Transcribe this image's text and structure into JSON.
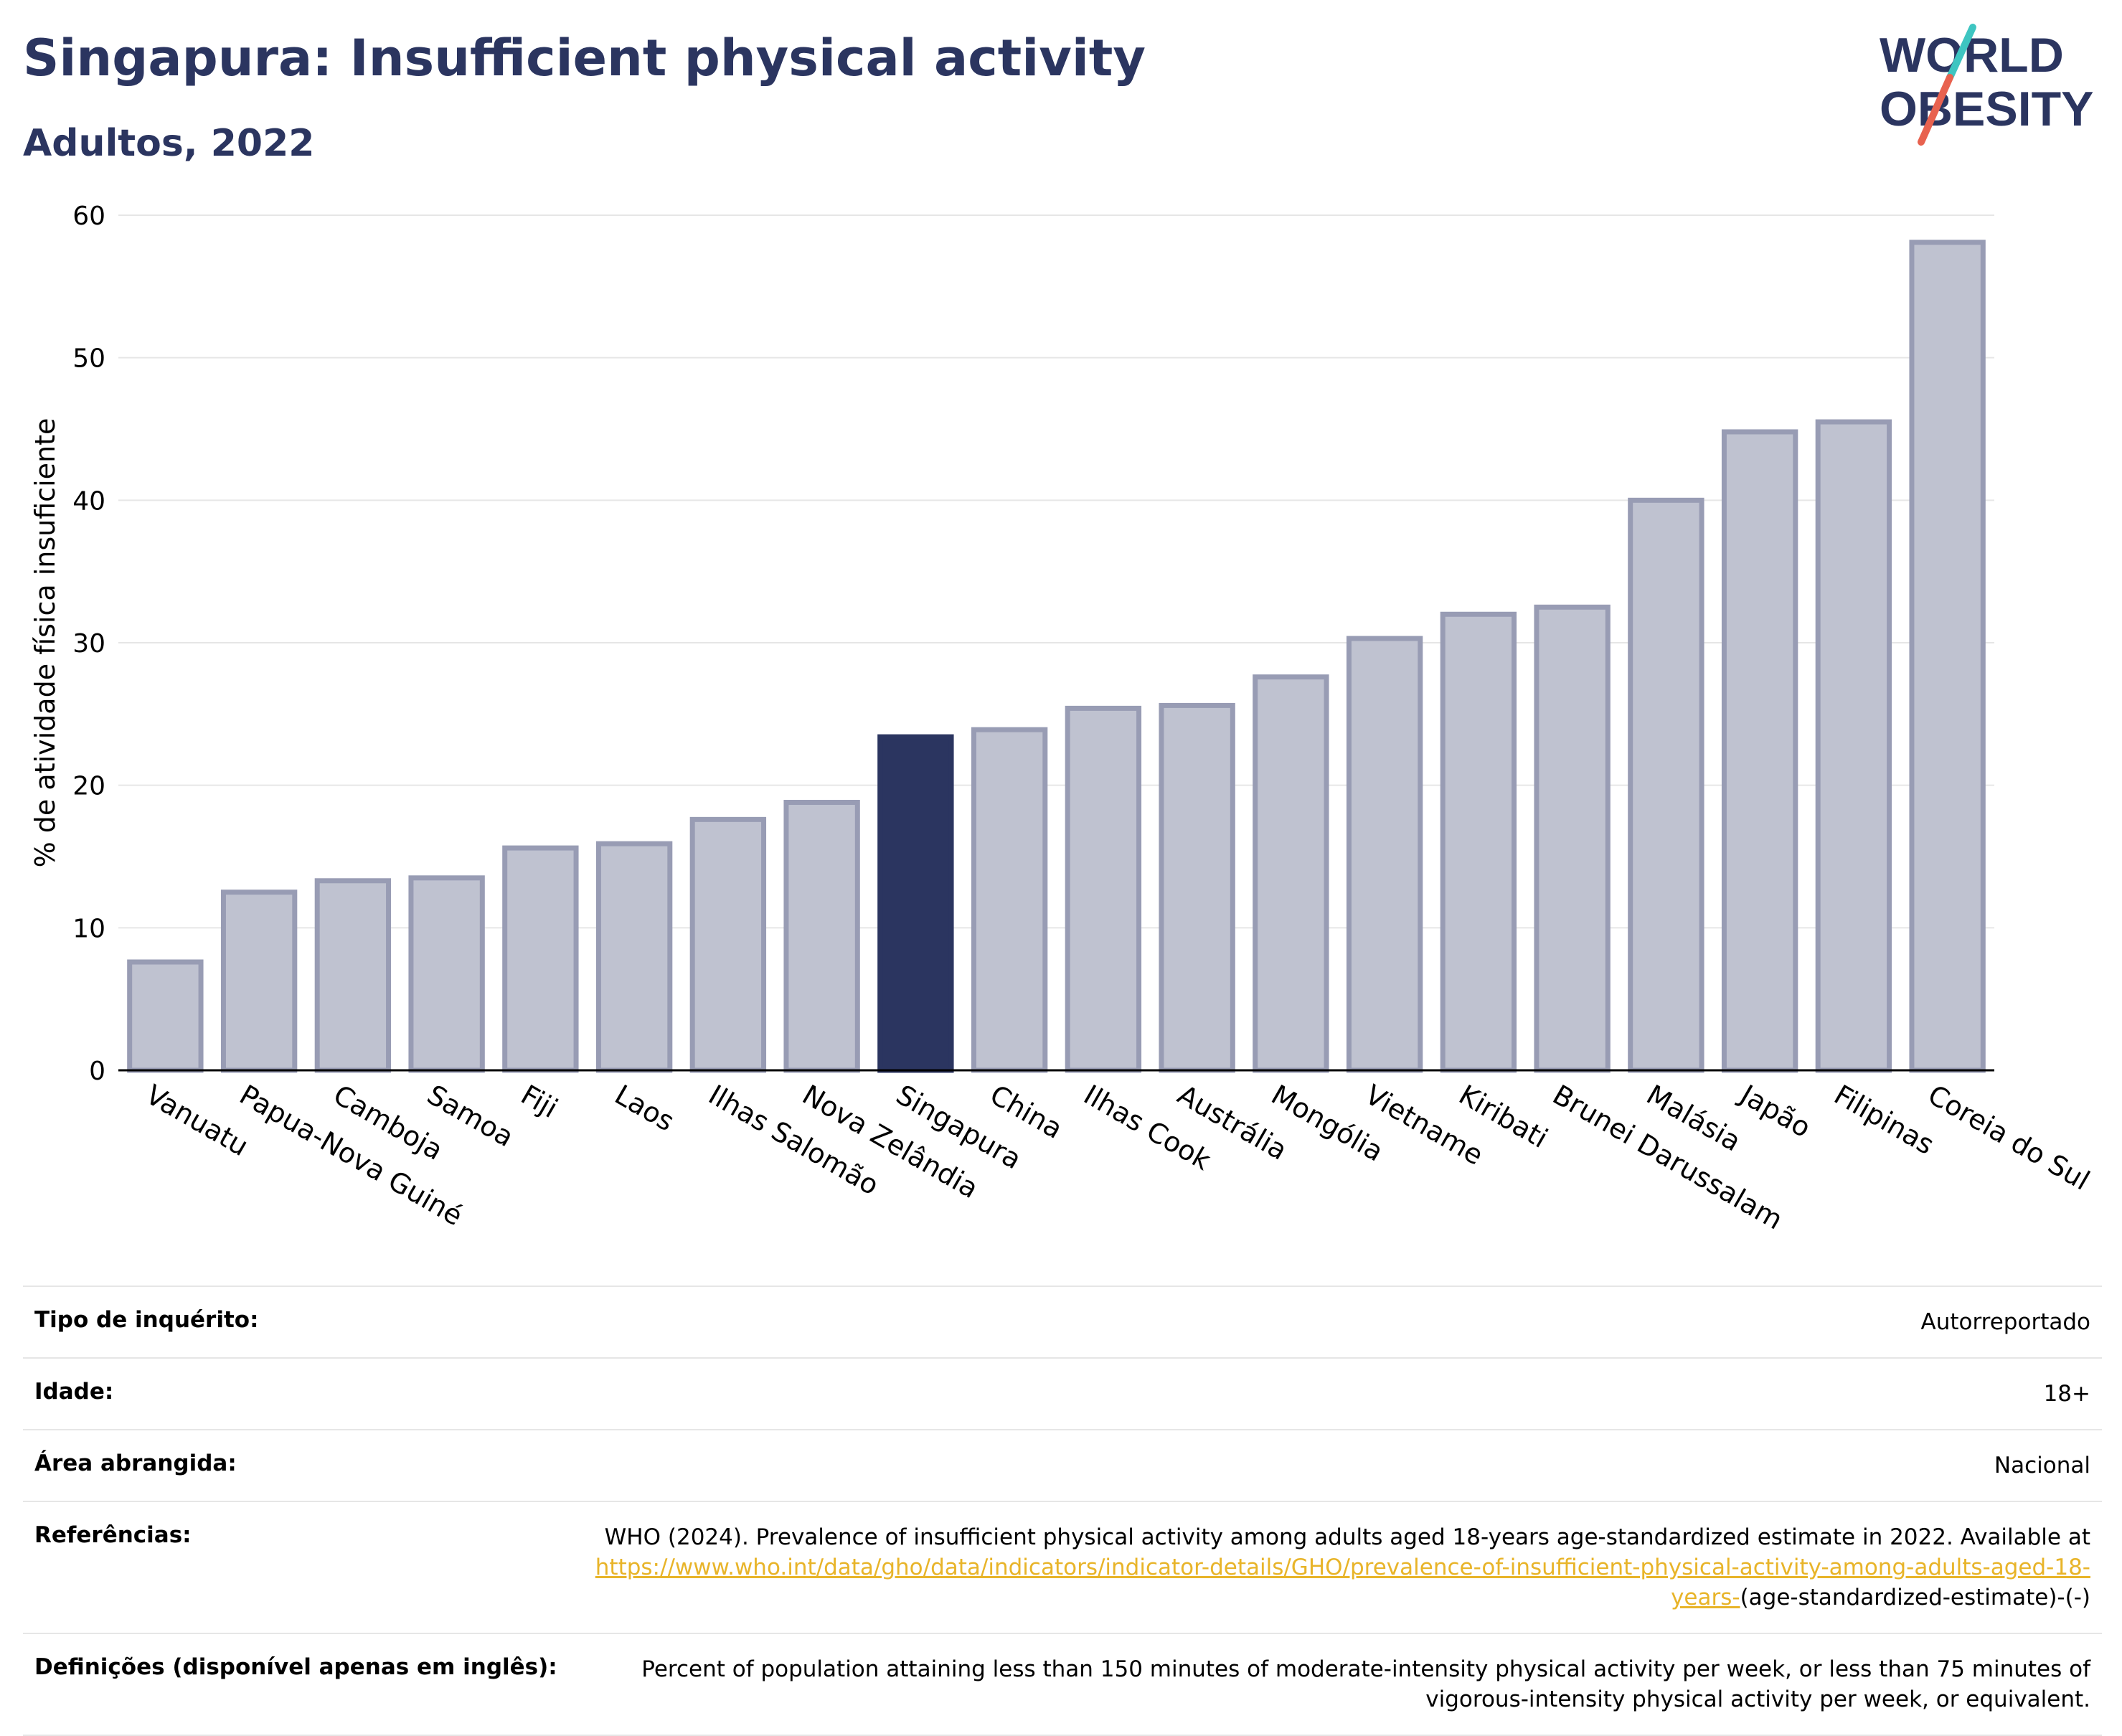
{
  "header": {
    "title": "Singapura: Insufficient physical activity",
    "subtitle": "Adultos, 2022"
  },
  "logo": {
    "line1": "WORLD",
    "line2": "OBESITY",
    "slash_colors": [
      "#3ec5c1",
      "#e8624f"
    ]
  },
  "colors": {
    "bar": "#bfc2d0",
    "bar_stroke": "#989cb4",
    "highlight": "#2b3560",
    "grid": "#e6e6e6",
    "text": "#2b3560",
    "link": "#e8b429"
  },
  "chart_data": {
    "type": "bar",
    "ylabel": "% de atividade física insuficiente",
    "ylim": [
      0,
      60
    ],
    "yticks": [
      0,
      10,
      20,
      30,
      40,
      50,
      60
    ],
    "highlight": "Singapura",
    "categories": [
      "Vanuatu",
      "Papua-Nova Guiné",
      "Camboja",
      "Samoa",
      "Fiji",
      "Laos",
      "Ilhas Salomão",
      "Nova Zelândia",
      "Singapura",
      "China",
      "Ilhas Cook",
      "Austrália",
      "Mongólia",
      "Vietname",
      "Kiribati",
      "Brunei Darussalam",
      "Malásia",
      "Japão",
      "Filipinas",
      "Coreia do Sul"
    ],
    "values": [
      7.6,
      12.5,
      13.3,
      13.5,
      15.6,
      15.9,
      17.6,
      18.8,
      23.4,
      23.9,
      25.4,
      25.6,
      27.6,
      30.3,
      32.0,
      32.5,
      40.0,
      44.8,
      45.5,
      58.1
    ]
  },
  "info": {
    "rows": [
      {
        "label": "Tipo de inquérito:",
        "value": "Autorreportado"
      },
      {
        "label": "Idade:",
        "value": "18+"
      },
      {
        "label": "Área abrangida:",
        "value": "Nacional"
      }
    ],
    "ref_label": "Referências:",
    "ref_text": "WHO (2024). Prevalence of insufficient physical activity among adults aged 18-years age-standardized estimate in 2022. Available at",
    "ref_link": "https://www.who.int/data/gho/data/indicators/indicator-details/GHO/prevalence-of-insufficient-physical-activity-among-adults-aged-18-years-",
    "ref_tail": "(age-standardized-estimate)-(-)",
    "def_label": "Definições (disponível apenas em inglês):",
    "def_text": "Percent of population attaining less than 150 minutes of moderate-intensity physical activity per week, or less than 75 minutes of vigorous-intensity physical activity per week, or equivalent."
  }
}
